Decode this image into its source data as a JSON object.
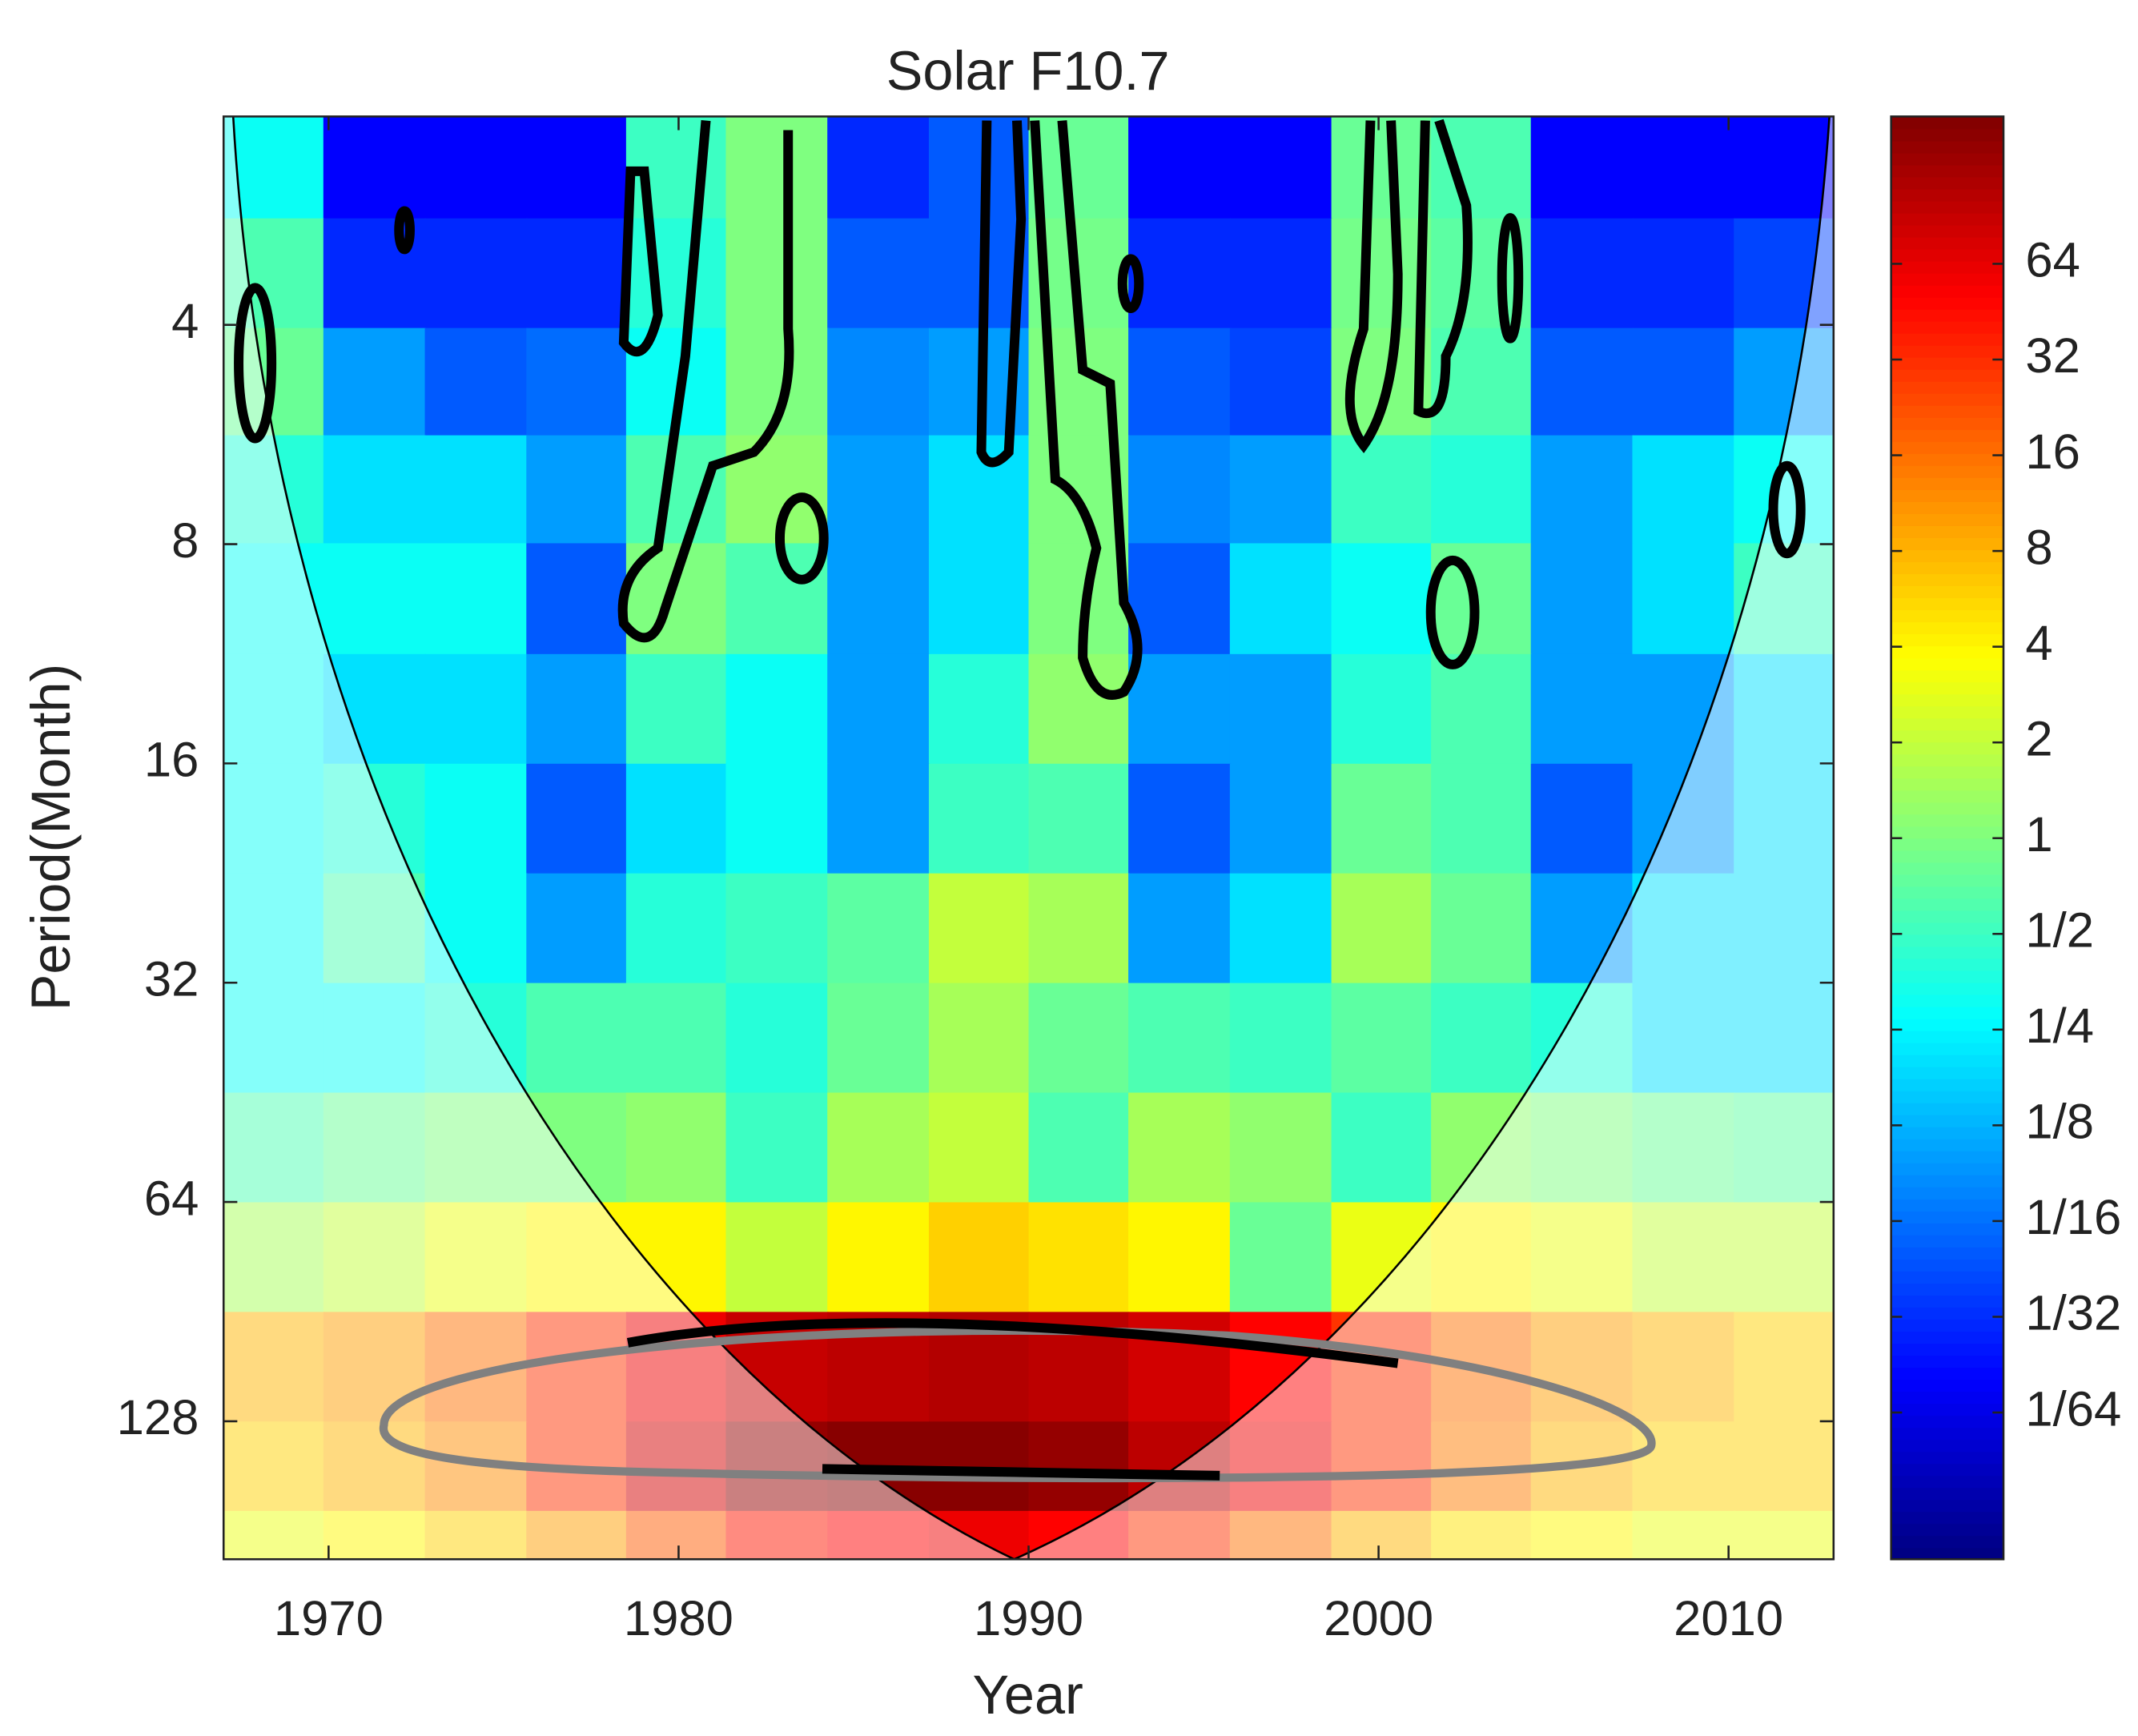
{
  "chart_data": {
    "type": "wavelet",
    "title": "Solar F10.7",
    "x_label": "Year",
    "y_label": "Period(Month)",
    "x": [
      1968.4,
      1971.3,
      1974.2,
      1977.1,
      1979.9,
      1982.8,
      1985.7,
      1988.6,
      1991.4,
      1994.3,
      1997.2,
      2000.1,
      2002.9,
      2005.8,
      2008.7,
      2011.6
    ],
    "periods": [
      2.4,
      3.4,
      4.8,
      6.7,
      9.5,
      13.5,
      19,
      27,
      38,
      54,
      76,
      108,
      152,
      190
    ],
    "power": [
      [
        0.3,
        0.02,
        0.02,
        0.02,
        0.5,
        1,
        0.03,
        0.05,
        0.8,
        0.02,
        0.02,
        0.8,
        0.6,
        0.02,
        0.02,
        0.02
      ],
      [
        0.6,
        0.03,
        0.03,
        0.03,
        0.4,
        1,
        0.05,
        0.05,
        0.9,
        0.03,
        0.03,
        0.9,
        0.7,
        0.03,
        0.03,
        0.04
      ],
      [
        0.8,
        0.1,
        0.05,
        0.06,
        0.3,
        1,
        0.08,
        0.1,
        1,
        0.05,
        0.04,
        1,
        0.6,
        0.05,
        0.05,
        0.1
      ],
      [
        0.4,
        0.2,
        0.2,
        0.1,
        0.6,
        1.2,
        0.1,
        0.2,
        1,
        0.08,
        0.1,
        0.5,
        0.4,
        0.1,
        0.2,
        0.3
      ],
      [
        0.3,
        0.3,
        0.3,
        0.05,
        1,
        0.6,
        0.1,
        0.2,
        1,
        0.05,
        0.2,
        0.3,
        0.8,
        0.1,
        0.2,
        0.5
      ],
      [
        0.3,
        0.2,
        0.2,
        0.1,
        0.5,
        0.3,
        0.1,
        0.4,
        1.2,
        0.1,
        0.1,
        0.4,
        0.6,
        0.1,
        0.1,
        0.2
      ],
      [
        0.3,
        0.4,
        0.3,
        0.05,
        0.2,
        0.3,
        0.1,
        0.5,
        0.6,
        0.05,
        0.1,
        0.8,
        0.6,
        0.05,
        0.1,
        0.2
      ],
      [
        0.3,
        0.6,
        0.3,
        0.1,
        0.4,
        0.5,
        0.7,
        2,
        1.5,
        0.1,
        0.2,
        1.5,
        0.8,
        0.1,
        0.2,
        0.2
      ],
      [
        0.3,
        0.3,
        0.4,
        0.6,
        0.6,
        0.4,
        0.8,
        1.5,
        0.8,
        0.6,
        0.5,
        0.7,
        0.5,
        0.4,
        0.2,
        0.2
      ],
      [
        0.6,
        0.8,
        1,
        1,
        1.2,
        0.5,
        1.5,
        2,
        0.6,
        1.5,
        1.2,
        0.5,
        1.2,
        1,
        0.8,
        0.7
      ],
      [
        1.5,
        2,
        3,
        4,
        4,
        2,
        4,
        6,
        5,
        4,
        0.8,
        3,
        4,
        3,
        2,
        2
      ],
      [
        8,
        10,
        16,
        30,
        60,
        90,
        100,
        110,
        100,
        80,
        50,
        30,
        16,
        10,
        8,
        6
      ],
      [
        6,
        8,
        12,
        30,
        80,
        150,
        170,
        170,
        150,
        100,
        60,
        30,
        14,
        8,
        6,
        6
      ],
      [
        3,
        4,
        6,
        10,
        20,
        40,
        50,
        60,
        50,
        30,
        16,
        8,
        5,
        4,
        3,
        3
      ]
    ],
    "xlim": [
      1967,
      2013
    ],
    "xticks": [
      1970,
      1980,
      1990,
      2000,
      2010
    ],
    "ylim": [
      2.07,
      198
    ],
    "y_log_base": 2,
    "y_reversed": true,
    "yticks": [
      4,
      8,
      16,
      32,
      64,
      128
    ],
    "colorbar_lim": [
      0.0054,
      186
    ],
    "colorbar_ticks": [
      {
        "value": 0.015625,
        "label": "1/64"
      },
      {
        "value": 0.03125,
        "label": "1/32"
      },
      {
        "value": 0.0625,
        "label": "1/16"
      },
      {
        "value": 0.125,
        "label": "1/8"
      },
      {
        "value": 0.25,
        "label": "1/4"
      },
      {
        "value": 0.5,
        "label": "1/2"
      },
      1,
      2,
      4,
      8,
      16,
      32,
      64
    ],
    "colormap": "jet"
  }
}
